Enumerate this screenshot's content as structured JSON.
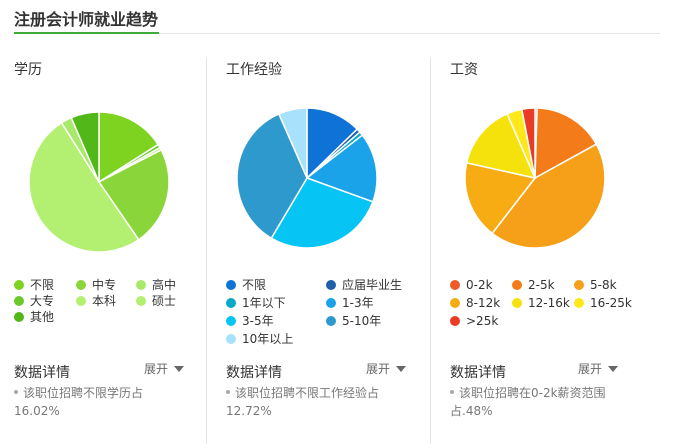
{
  "page": {
    "title": "注册会计师就业趋势"
  },
  "details_label": "数据详情",
  "expand_label": "展开",
  "chart_data": [
    {
      "type": "pie",
      "title": "学历",
      "series": [
        {
          "name": "不限",
          "value": 16.02,
          "color": "#7ed321"
        },
        {
          "name": "大专",
          "value": 0.8,
          "color": "#6cc92d"
        },
        {
          "name": "本科",
          "value": 0.6,
          "color": "#b7ef73"
        },
        {
          "name": "中专",
          "value": 23.0,
          "color": "#8ad63a"
        },
        {
          "name": "硕士",
          "value": 50.6,
          "color": "#b3f071"
        },
        {
          "name": "高中",
          "value": 2.5,
          "color": "#a8e86b"
        },
        {
          "name": "其他",
          "value": 6.48,
          "color": "#52b81a"
        }
      ],
      "legend_order": [
        "不限",
        "中专",
        "高中",
        "大专",
        "本科",
        "硕士",
        "其他"
      ],
      "legend_placement": "bottom",
      "detail_text": "该职位招聘不限学历占16.02%"
    },
    {
      "type": "pie",
      "title": "工作经验",
      "series": [
        {
          "name": "不限",
          "value": 12.72,
          "color": "#0f72d6"
        },
        {
          "name": "应届毕业生",
          "value": 0.9,
          "color": "#1d5fa8"
        },
        {
          "name": "1年以下",
          "value": 0.9,
          "color": "#0aa8c9"
        },
        {
          "name": "1-3年",
          "value": 16.0,
          "color": "#1aa3e8"
        },
        {
          "name": "3-5年",
          "value": 28.0,
          "color": "#06c5f4"
        },
        {
          "name": "5-10年",
          "value": 34.9,
          "color": "#2e99cc"
        },
        {
          "name": "10年以上",
          "value": 6.58,
          "color": "#a8e1fb"
        }
      ],
      "legend_order": [
        "不限",
        "应届毕业生",
        "1年以下",
        "1-3年",
        "3-5年",
        "5-10年",
        "10年以上"
      ],
      "legend_placement": "bottom",
      "detail_text": "该职位招聘不限工作经验占12.72%"
    },
    {
      "type": "pie",
      "title": "工资",
      "series": [
        {
          "name": "0-2k",
          "value": 0.48,
          "color": "#ee5a2a"
        },
        {
          "name": "2-5k",
          "value": 16.5,
          "color": "#f47b1a"
        },
        {
          "name": "5-8k",
          "value": 43.5,
          "color": "#f6a01a"
        },
        {
          "name": "8-12k",
          "value": 18.0,
          "color": "#f8ac14"
        },
        {
          "name": "12-16k",
          "value": 15.0,
          "color": "#f5e20c"
        },
        {
          "name": "16-25k",
          "value": 3.5,
          "color": "#ffe81a"
        },
        {
          "name": ">25k",
          "value": 3.02,
          "color": "#ea3c25"
        }
      ],
      "legend_order": [
        "0-2k",
        "2-5k",
        "5-8k",
        "8-12k",
        "12-16k",
        "16-25k",
        ">25k"
      ],
      "legend_placement": "bottom",
      "detail_text": "该职位招聘在0-2k薪资范围占.48%"
    }
  ]
}
